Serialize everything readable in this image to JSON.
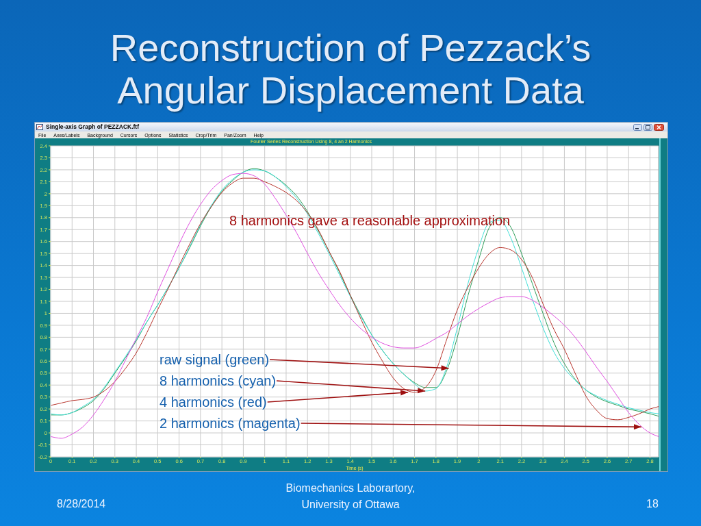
{
  "chart_data": {
    "type": "line",
    "title": "Reconstruction of Pezzack’s Angular Displacement Data",
    "subtitle": "Fourier Series Reconstruction Using 8, 4 an 2 Harmonics",
    "xlabel": "Time (s)",
    "x": [
      0,
      0.05,
      0.1,
      0.15,
      0.2,
      0.25,
      0.3,
      0.35,
      0.4,
      0.45,
      0.5,
      0.55,
      0.6,
      0.65,
      0.7,
      0.75,
      0.8,
      0.85,
      0.9,
      0.95,
      1,
      1.05,
      1.1,
      1.15,
      1.2,
      1.25,
      1.3,
      1.35,
      1.4,
      1.45,
      1.5,
      1.55,
      1.6,
      1.65,
      1.7,
      1.75,
      1.8,
      1.85,
      1.9,
      1.95,
      2,
      2.05,
      2.1,
      2.15,
      2.2,
      2.25,
      2.3,
      2.35,
      2.4,
      2.45,
      2.5,
      2.55,
      2.6,
      2.65,
      2.7,
      2.75,
      2.8,
      2.84
    ],
    "series": [
      {
        "color": "#2e9e5a",
        "values": [
          0.15,
          0.15,
          0.17,
          0.21,
          0.27,
          0.37,
          0.5,
          0.63,
          0.77,
          0.93,
          1.07,
          1.22,
          1.38,
          1.55,
          1.73,
          1.89,
          2.02,
          2.11,
          2.18,
          2.21,
          2.19,
          2.14,
          2.07,
          1.98,
          1.85,
          1.69,
          1.52,
          1.34,
          1.15,
          0.98,
          0.82,
          0.69,
          0.58,
          0.49,
          0.42,
          0.38,
          0.38,
          0.52,
          0.8,
          1.15,
          1.45,
          1.72,
          1.8,
          1.72,
          1.5,
          1.25,
          1.0,
          0.76,
          0.58,
          0.45,
          0.36,
          0.3,
          0.26,
          0.23,
          0.2,
          0.18,
          0.16,
          0.14
        ]
      },
      {
        "color": "#3fe0d8",
        "values": [
          0.16,
          0.15,
          0.17,
          0.22,
          0.28,
          0.38,
          0.51,
          0.64,
          0.78,
          0.93,
          1.07,
          1.22,
          1.38,
          1.56,
          1.74,
          1.9,
          2.03,
          2.12,
          2.18,
          2.2,
          2.19,
          2.14,
          2.06,
          1.96,
          1.83,
          1.67,
          1.5,
          1.32,
          1.14,
          0.97,
          0.82,
          0.69,
          0.58,
          0.49,
          0.41,
          0.35,
          0.37,
          0.55,
          0.88,
          1.25,
          1.55,
          1.76,
          1.78,
          1.63,
          1.38,
          1.12,
          0.88,
          0.68,
          0.54,
          0.44,
          0.36,
          0.31,
          0.27,
          0.24,
          0.21,
          0.19,
          0.17,
          0.16
        ]
      },
      {
        "color": "#b8342c",
        "values": [
          0.23,
          0.25,
          0.27,
          0.28,
          0.3,
          0.35,
          0.43,
          0.54,
          0.67,
          0.84,
          1.03,
          1.21,
          1.4,
          1.58,
          1.75,
          1.89,
          2.01,
          2.09,
          2.13,
          2.13,
          2.1,
          2.06,
          2.01,
          1.94,
          1.84,
          1.7,
          1.52,
          1.35,
          1.15,
          0.95,
          0.76,
          0.6,
          0.46,
          0.37,
          0.34,
          0.38,
          0.52,
          0.78,
          1.03,
          1.22,
          1.38,
          1.5,
          1.55,
          1.53,
          1.45,
          1.3,
          1.08,
          0.87,
          0.7,
          0.5,
          0.31,
          0.19,
          0.12,
          0.11,
          0.13,
          0.16,
          0.2,
          0.22
        ]
      },
      {
        "color": "#e050e0",
        "values": [
          -0.03,
          -0.045,
          -0.01,
          0.05,
          0.15,
          0.28,
          0.43,
          0.61,
          0.79,
          0.97,
          1.18,
          1.38,
          1.58,
          1.76,
          1.91,
          2.03,
          2.11,
          2.16,
          2.17,
          2.15,
          2.08,
          1.96,
          1.82,
          1.67,
          1.5,
          1.34,
          1.2,
          1.07,
          0.96,
          0.87,
          0.8,
          0.75,
          0.72,
          0.71,
          0.71,
          0.74,
          0.79,
          0.84,
          0.91,
          0.98,
          1.04,
          1.09,
          1.13,
          1.14,
          1.14,
          1.11,
          1.05,
          0.98,
          0.9,
          0.8,
          0.68,
          0.55,
          0.43,
          0.3,
          0.17,
          0.07,
          0.0,
          -0.03
        ]
      }
    ],
    "xlim": [
      0,
      2.84
    ],
    "xticks": [
      0,
      0.1,
      0.2,
      0.3,
      0.4,
      0.5,
      0.6,
      0.7,
      0.8,
      0.9,
      1,
      1.1,
      1.2,
      1.3,
      1.4,
      1.5,
      1.6,
      1.7,
      1.8,
      1.9,
      2,
      2.1,
      2.2,
      2.3,
      2.4,
      2.5,
      2.6,
      2.7,
      2.8
    ],
    "ylim": [
      -0.2,
      2.4
    ],
    "yticks": [
      -0.2,
      -0.1,
      0,
      0.1,
      0.2,
      0.3,
      0.4,
      0.5,
      0.6,
      0.7,
      0.8,
      0.9,
      1,
      1.1,
      1.2,
      1.3,
      1.4,
      1.5,
      1.6,
      1.7,
      1.8,
      1.9,
      2,
      2.1,
      2.2,
      2.3,
      2.4
    ],
    "grid": true,
    "annotations": [
      "Single-axis Graph of PEZZACK.ftf",
      "File",
      "Axes/Labels",
      "Background",
      "Cursors",
      "Options",
      "Statistics",
      "Crop/Trim",
      "Pan/Zoom",
      "Help",
      "8 harmonics gave a reasonable approximation",
      {
        "text": "raw signal (green)",
        "x": 1.86,
        "y": 0.54
      },
      {
        "text": "8 harmonics (cyan)",
        "x": 1.75,
        "y": 0.35
      },
      {
        "text": "4 harmonics (red)",
        "x": 1.67,
        "y": 0.34
      },
      {
        "text": "2 harmonics (magenta)",
        "x": 2.76,
        "y": 0.05
      },
      "8/28/2014",
      "Biomechanics Laborartory, University of Ottawa",
      "18"
    ]
  }
}
